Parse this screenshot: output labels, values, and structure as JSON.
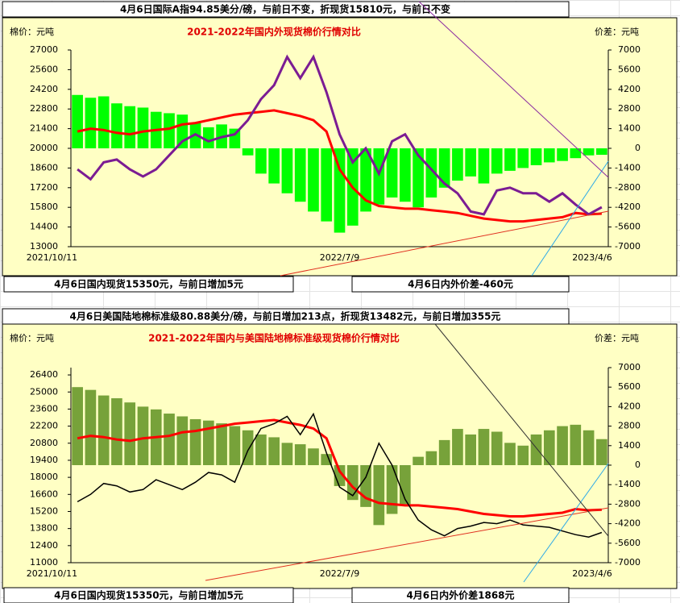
{
  "chart_data": [
    {
      "type": "combo",
      "title": "2021-2022年国内外现货棉价行情对比",
      "headline": "4月6日国际A指94.85美分/磅，与前日不变，折现货15810元，与前日不变",
      "y_label": "棉价：元吨",
      "y2_label": "价差：元吨",
      "annotations": [
        "4月6日国内现货15350元，与前日增加5元",
        "4月6日内外价差-460元"
      ],
      "categories": [
        "2021/10/11",
        null,
        null,
        null,
        null,
        null,
        null,
        null,
        null,
        null,
        null,
        null,
        null,
        null,
        null,
        null,
        null,
        null,
        null,
        null,
        "2022/7/9",
        null,
        null,
        null,
        null,
        null,
        null,
        null,
        null,
        null,
        null,
        null,
        null,
        null,
        null,
        null,
        null,
        null,
        null,
        null,
        "2023/4/6"
      ],
      "ylim": [
        13000,
        27000
      ],
      "yticks": [
        27000,
        25600,
        24200,
        22800,
        21400,
        20000,
        18600,
        17200,
        15800,
        14400,
        13000
      ],
      "y2lim": [
        -7000,
        7000
      ],
      "y2ticks": [
        7000,
        5600,
        4200,
        2800,
        1400,
        0,
        -1400,
        -2800,
        -4200,
        -5600,
        -7000
      ],
      "series": [
        {
          "type": "bar",
          "axis": "y2",
          "color": "#00ff00",
          "values": [
            3800,
            3600,
            3700,
            3200,
            3000,
            2900,
            2600,
            2500,
            2400,
            1800,
            1500,
            1700,
            1400,
            -500,
            -1800,
            -2500,
            -3200,
            -3800,
            -4500,
            -5200,
            -6000,
            -5500,
            -4500,
            -4000,
            -3500,
            -3800,
            -4200,
            -3500,
            -2800,
            -2300,
            -2000,
            -2500,
            -1800,
            -1600,
            -1400,
            -1200,
            -1000,
            -900,
            -700,
            -500,
            -460
          ]
        },
        {
          "type": "line",
          "color": "#ff0000",
          "values": [
            21200,
            21400,
            21300,
            21100,
            21000,
            21200,
            21300,
            21400,
            21700,
            21800,
            22000,
            22200,
            22400,
            22500,
            22600,
            22700,
            22500,
            22300,
            22000,
            21200,
            18500,
            17200,
            16300,
            15900,
            15800,
            15700,
            15700,
            15600,
            15500,
            15400,
            15200,
            15000,
            14900,
            14800,
            14800,
            14900,
            15000,
            15100,
            15400,
            15300,
            15350
          ]
        },
        {
          "type": "line",
          "color": "#7b1c93",
          "values": [
            18500,
            17800,
            19000,
            19200,
            18500,
            18000,
            18500,
            19500,
            20500,
            21000,
            20500,
            20800,
            21000,
            22000,
            23500,
            24500,
            26500,
            25000,
            26500,
            24000,
            21000,
            19000,
            20000,
            18200,
            20500,
            21000,
            19500,
            18500,
            17500,
            16800,
            15500,
            15300,
            17000,
            17200,
            16800,
            16800,
            16200,
            16800,
            16000,
            15300,
            15810
          ]
        }
      ]
    },
    {
      "type": "combo",
      "title": "2021-2022年国内与美国陆地棉标准级现货棉价行情对比",
      "headline": "4月6日美国陆地棉标准级80.88美分/磅，与前日增加213点，折现货13482元，与前日增加355元",
      "y_label": "棉价：元吨",
      "y2_label": "价差：元吨",
      "annotations": [
        "4月6日国内现货15350元，与前日增加5元",
        "4月6日内外价差1868元"
      ],
      "categories": [
        "2021/10/11",
        null,
        null,
        null,
        null,
        null,
        null,
        null,
        null,
        null,
        null,
        null,
        null,
        null,
        null,
        null,
        null,
        null,
        null,
        null,
        "2022/7/9",
        null,
        null,
        null,
        null,
        null,
        null,
        null,
        null,
        null,
        null,
        null,
        null,
        null,
        null,
        null,
        null,
        null,
        null,
        null,
        "2023/4/6"
      ],
      "ylim": [
        11000,
        27000
      ],
      "yticks": [
        26400,
        25000,
        23600,
        22200,
        20800,
        19400,
        18000,
        16600,
        15200,
        13800,
        12400,
        11000
      ],
      "y2lim": [
        -7000,
        7000
      ],
      "y2ticks": [
        7000,
        5600,
        4200,
        2800,
        1400,
        0,
        -1400,
        -2800,
        -4200,
        -5600,
        -7000
      ],
      "series": [
        {
          "type": "bar",
          "axis": "y2",
          "color": "#77a23a",
          "values": [
            5600,
            5400,
            5000,
            4800,
            4500,
            4200,
            4000,
            3700,
            3500,
            3300,
            3200,
            3000,
            2800,
            2500,
            2200,
            2000,
            1600,
            1500,
            1200,
            800,
            -1500,
            -2500,
            -3000,
            -4300,
            -3500,
            -2800,
            600,
            1000,
            1800,
            2600,
            2200,
            2600,
            2400,
            1600,
            1400,
            2200,
            2500,
            2800,
            2900,
            2500,
            1868
          ]
        },
        {
          "type": "line",
          "color": "#ff0000",
          "values": [
            21200,
            21400,
            21300,
            21100,
            21000,
            21200,
            21300,
            21400,
            21700,
            21800,
            22000,
            22200,
            22400,
            22500,
            22600,
            22700,
            22500,
            22300,
            22000,
            21200,
            18500,
            17200,
            16300,
            15900,
            15800,
            15700,
            15700,
            15600,
            15500,
            15400,
            15200,
            15000,
            14900,
            14800,
            14800,
            14900,
            15000,
            15100,
            15400,
            15300,
            15350
          ]
        },
        {
          "type": "line",
          "color": "#000000",
          "values": [
            16000,
            16600,
            17500,
            17300,
            16800,
            17000,
            17800,
            17400,
            17000,
            17600,
            18400,
            18200,
            17600,
            20200,
            22000,
            22400,
            23000,
            21500,
            23200,
            20000,
            17200,
            16500,
            18000,
            20800,
            19000,
            16200,
            14500,
            13700,
            13200,
            13800,
            14000,
            14300,
            14200,
            14500,
            14100,
            14000,
            13900,
            13600,
            13300,
            13100,
            13482
          ]
        }
      ]
    }
  ]
}
